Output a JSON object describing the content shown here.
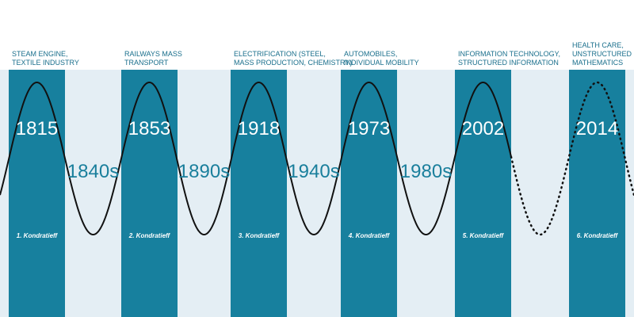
{
  "waves": [
    {
      "label_lines": [
        "STEAM ENGINE,",
        "TEXTILE INDUSTRY"
      ],
      "year": "1815",
      "name": "1. Kondratieff"
    },
    {
      "label_lines": [
        "RAILWAYS MASS",
        "TRANSPORT"
      ],
      "year": "1853",
      "name": "2. Kondratieff"
    },
    {
      "label_lines": [
        "ELECTRIFICATION (STEEL,",
        "MASS PRODUCTION, CHEMISTRY)"
      ],
      "year": "1918",
      "name": "3. Kondratieff"
    },
    {
      "label_lines": [
        "AUTOMOBILES,",
        "INDIVIDUAL MOBILITY"
      ],
      "year": "1973",
      "name": "4. Kondratieff"
    },
    {
      "label_lines": [
        "INFORMATION TECHNOLOGY,",
        "STRUCTURED INFORMATION"
      ],
      "year": "2002",
      "name": "5. Kondratieff"
    },
    {
      "label_lines": [
        "HEALTH CARE,",
        "UNSTRUCTURED INFORMATION",
        "MATHEMATICS"
      ],
      "year": "2014",
      "name": "6. Kondratieff"
    }
  ],
  "troughs": [
    "1840s",
    "1890s",
    "1940s",
    "1980s"
  ]
}
